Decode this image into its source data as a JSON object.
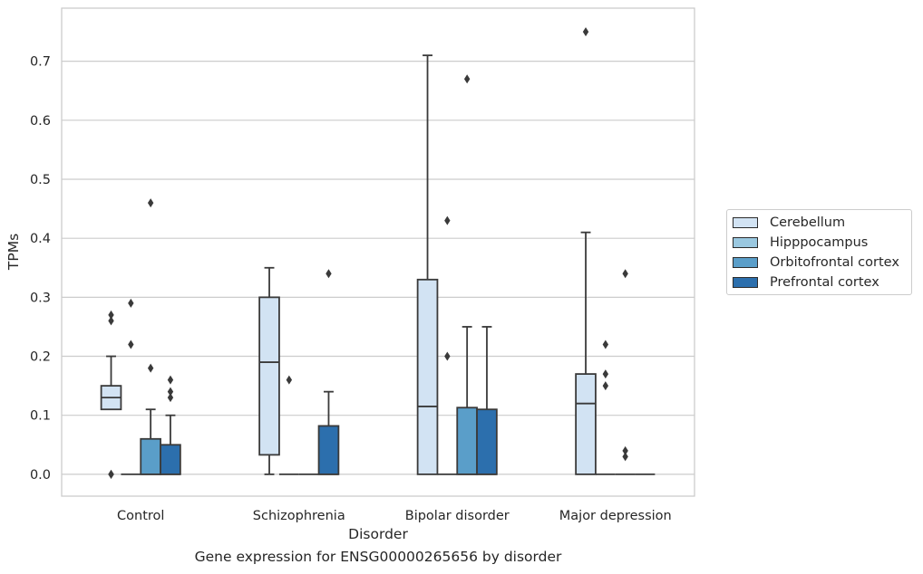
{
  "caption": "Gene expression for ENSG00000265656 by disorder",
  "chart_data": {
    "type": "box",
    "xlabel": "Disorder",
    "ylabel": "TPMs",
    "ylim": [
      -0.037,
      0.79
    ],
    "yticks": [
      0.0,
      0.1,
      0.2,
      0.3,
      0.4,
      0.5,
      0.6,
      0.7
    ],
    "yticklabels": [
      "0.0",
      "0.1",
      "0.2",
      "0.3",
      "0.4",
      "0.5",
      "0.6",
      "0.7"
    ],
    "grid": "horizontal",
    "legend_position": "right",
    "categories": [
      "Control",
      "Schizophrenia",
      "Bipolar disorder",
      "Major depression"
    ],
    "series": [
      {
        "name": "Cerebellum",
        "color": "#d2e3f3",
        "boxes": [
          {
            "q1": 0.11,
            "median": 0.13,
            "q3": 0.15,
            "whisker_low": 0.11,
            "whisker_high": 0.2,
            "outliers": [
              0.27,
              0.26,
              0.0,
              0.0
            ]
          },
          {
            "q1": 0.033,
            "median": 0.19,
            "q3": 0.3,
            "whisker_low": 0.0,
            "whisker_high": 0.35,
            "outliers": []
          },
          {
            "q1": 0.0,
            "median": 0.115,
            "q3": 0.33,
            "whisker_low": 0.0,
            "whisker_high": 0.71,
            "outliers": []
          },
          {
            "q1": 0.0,
            "median": 0.12,
            "q3": 0.17,
            "whisker_low": 0.0,
            "whisker_high": 0.41,
            "outliers": [
              0.75
            ]
          }
        ]
      },
      {
        "name": "Hipppocampus",
        "color": "#9ac8e0",
        "boxes": [
          {
            "q1": 0.0,
            "median": 0.0,
            "q3": 0.0,
            "whisker_low": 0.0,
            "whisker_high": 0.0,
            "outliers": [
              0.29,
              0.22
            ]
          },
          {
            "q1": 0.0,
            "median": 0.0,
            "q3": 0.0,
            "whisker_low": 0.0,
            "whisker_high": 0.0,
            "outliers": [
              0.16
            ]
          },
          {
            "q1": 0.0,
            "median": 0.0,
            "q3": 0.0,
            "whisker_low": 0.0,
            "whisker_high": 0.0,
            "outliers": [
              0.43,
              0.2
            ]
          },
          {
            "q1": 0.0,
            "median": 0.0,
            "q3": 0.0,
            "whisker_low": 0.0,
            "whisker_high": 0.0,
            "outliers": [
              0.22,
              0.17,
              0.15
            ]
          }
        ]
      },
      {
        "name": "Orbitofrontal cortex",
        "color": "#5a9ec9",
        "boxes": [
          {
            "q1": 0.0,
            "median": 0.0,
            "q3": 0.06,
            "whisker_low": 0.0,
            "whisker_high": 0.11,
            "outliers": [
              0.46,
              0.18
            ]
          },
          {
            "q1": 0.0,
            "median": 0.0,
            "q3": 0.0,
            "whisker_low": 0.0,
            "whisker_high": 0.0,
            "outliers": []
          },
          {
            "q1": 0.0,
            "median": 0.0,
            "q3": 0.113,
            "whisker_low": 0.0,
            "whisker_high": 0.25,
            "outliers": [
              0.67
            ]
          },
          {
            "q1": 0.0,
            "median": 0.0,
            "q3": 0.0,
            "whisker_low": 0.0,
            "whisker_high": 0.0,
            "outliers": [
              0.34,
              0.04,
              0.03
            ]
          }
        ]
      },
      {
        "name": "Prefrontal cortex",
        "color": "#2c6fad",
        "boxes": [
          {
            "q1": 0.0,
            "median": 0.0,
            "q3": 0.05,
            "whisker_low": 0.0,
            "whisker_high": 0.1,
            "outliers": [
              0.16,
              0.14,
              0.13
            ]
          },
          {
            "q1": 0.0,
            "median": 0.0,
            "q3": 0.082,
            "whisker_low": 0.0,
            "whisker_high": 0.14,
            "outliers": [
              0.34
            ]
          },
          {
            "q1": 0.0,
            "median": 0.0,
            "q3": 0.11,
            "whisker_low": 0.0,
            "whisker_high": 0.25,
            "outliers": []
          },
          {
            "q1": 0.0,
            "median": 0.0,
            "q3": 0.0,
            "whisker_low": 0.0,
            "whisker_high": 0.0,
            "outliers": []
          }
        ]
      }
    ]
  }
}
